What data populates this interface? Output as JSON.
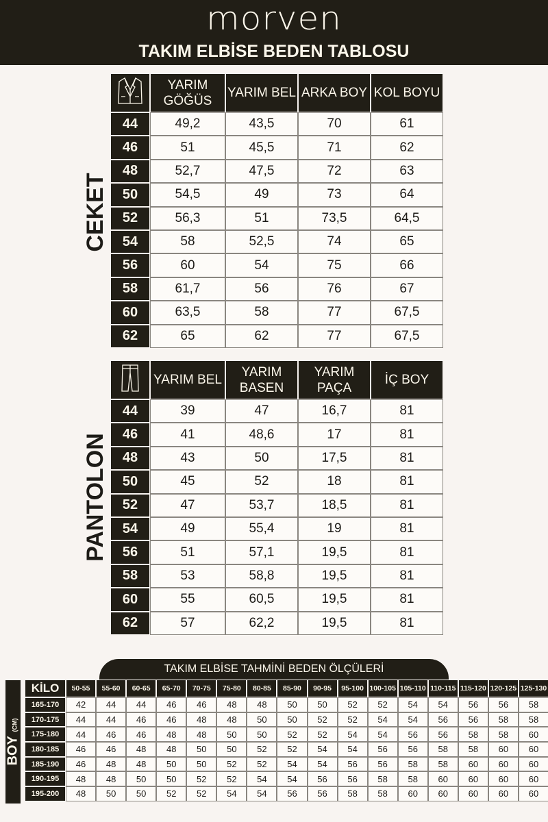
{
  "brand": "morven",
  "title": "TAKIM ELBİSE BEDEN TABLOSU",
  "colors": {
    "dark": "#211e16",
    "background": "#f8f4f1",
    "text_light": "#fbf6ea"
  },
  "ceket": {
    "label": "CEKET",
    "icon": "jacket-icon",
    "headers": [
      "YARIM GÖĞÜS",
      "YARIM BEL",
      "ARKA BOY",
      "KOL BOYU"
    ],
    "rows": [
      [
        "44",
        "49,2",
        "43,5",
        "70",
        "61"
      ],
      [
        "46",
        "51",
        "45,5",
        "71",
        "62"
      ],
      [
        "48",
        "52,7",
        "47,5",
        "72",
        "63"
      ],
      [
        "50",
        "54,5",
        "49",
        "73",
        "64"
      ],
      [
        "52",
        "56,3",
        "51",
        "73,5",
        "64,5"
      ],
      [
        "54",
        "58",
        "52,5",
        "74",
        "65"
      ],
      [
        "56",
        "60",
        "54",
        "75",
        "66"
      ],
      [
        "58",
        "61,7",
        "56",
        "76",
        "67"
      ],
      [
        "60",
        "63,5",
        "58",
        "77",
        "67,5"
      ],
      [
        "62",
        "65",
        "62",
        "77",
        "67,5"
      ]
    ]
  },
  "pantolon": {
    "label": "PANTOLON",
    "icon": "trousers-icon",
    "headers": [
      "YARIM BEL",
      "YARIM BASEN",
      "YARIM PAÇA",
      "İÇ BOY"
    ],
    "rows": [
      [
        "44",
        "39",
        "47",
        "16,7",
        "81"
      ],
      [
        "46",
        "41",
        "48,6",
        "17",
        "81"
      ],
      [
        "48",
        "43",
        "50",
        "17,5",
        "81"
      ],
      [
        "50",
        "45",
        "52",
        "18",
        "81"
      ],
      [
        "52",
        "47",
        "53,7",
        "18,5",
        "81"
      ],
      [
        "54",
        "49",
        "55,4",
        "19",
        "81"
      ],
      [
        "56",
        "51",
        "57,1",
        "19,5",
        "81"
      ],
      [
        "58",
        "53",
        "58,8",
        "19,5",
        "81"
      ],
      [
        "60",
        "55",
        "60,5",
        "19,5",
        "81"
      ],
      [
        "62",
        "57",
        "62,2",
        "19,5",
        "81"
      ]
    ]
  },
  "estimate": {
    "title": "TAKIM ELBİSE TAHMİNİ BEDEN ÖLÇÜLERİ",
    "row_axis": "BOY",
    "row_unit": "(CM)",
    "col_axis": "KİLO",
    "kilo": [
      "50-55",
      "55-60",
      "60-65",
      "65-70",
      "70-75",
      "75-80",
      "80-85",
      "85-90",
      "90-95",
      "95-100",
      "100-105",
      "105-110",
      "110-115",
      "115-120",
      "120-125",
      "125-130"
    ],
    "rows": [
      {
        "boy": "165-170",
        "sizes": [
          "42",
          "44",
          "44",
          "46",
          "46",
          "48",
          "48",
          "50",
          "50",
          "52",
          "52",
          "54",
          "54",
          "56",
          "56",
          "58"
        ]
      },
      {
        "boy": "170-175",
        "sizes": [
          "44",
          "44",
          "46",
          "46",
          "48",
          "48",
          "50",
          "50",
          "52",
          "52",
          "54",
          "54",
          "56",
          "56",
          "58",
          "58"
        ]
      },
      {
        "boy": "175-180",
        "sizes": [
          "44",
          "46",
          "46",
          "48",
          "48",
          "50",
          "50",
          "52",
          "52",
          "54",
          "54",
          "56",
          "56",
          "58",
          "58",
          "60"
        ]
      },
      {
        "boy": "180-185",
        "sizes": [
          "46",
          "46",
          "48",
          "48",
          "50",
          "50",
          "52",
          "52",
          "54",
          "54",
          "56",
          "56",
          "58",
          "58",
          "60",
          "60"
        ]
      },
      {
        "boy": "185-190",
        "sizes": [
          "46",
          "48",
          "48",
          "50",
          "50",
          "52",
          "52",
          "54",
          "54",
          "56",
          "56",
          "58",
          "58",
          "60",
          "60",
          "60"
        ]
      },
      {
        "boy": "190-195",
        "sizes": [
          "48",
          "48",
          "50",
          "50",
          "52",
          "52",
          "54",
          "54",
          "56",
          "56",
          "58",
          "58",
          "60",
          "60",
          "60",
          "60"
        ]
      },
      {
        "boy": "195-200",
        "sizes": [
          "48",
          "50",
          "50",
          "52",
          "52",
          "54",
          "54",
          "56",
          "56",
          "58",
          "58",
          "60",
          "60",
          "60",
          "60",
          "60"
        ]
      }
    ]
  }
}
